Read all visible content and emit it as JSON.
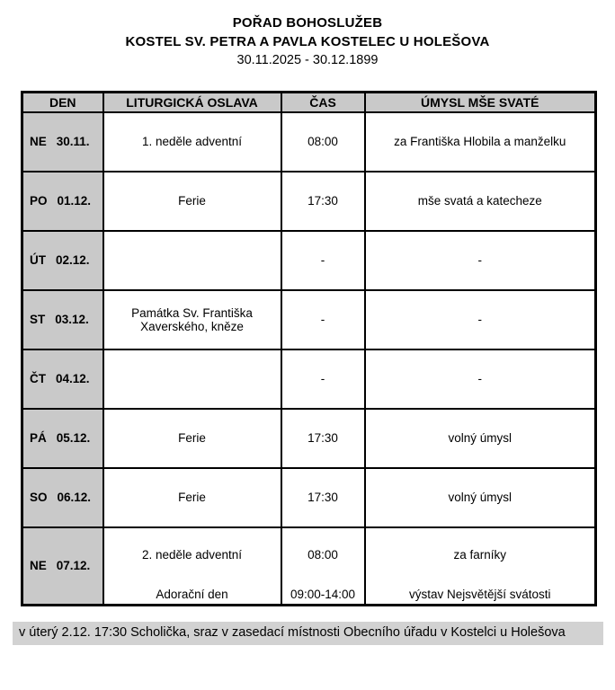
{
  "title": {
    "line1": "POŘAD BOHOSLUŽEB",
    "line2": "KOSTEL SV. PETRA A PAVLA KOSTELEC U HOLEŠOVA",
    "line3": "30.11.2025 - 30.12.1899"
  },
  "table": {
    "headers": [
      "DEN",
      "LITURGICKÁ OSLAVA",
      "ČAS",
      "ÚMYSL MŠE SVATÉ"
    ],
    "rows": [
      {
        "day": "NE",
        "date": "30.11.",
        "celebration": "1. neděle adventní",
        "time": "08:00",
        "intention": "za Františka Hlobila a manželku"
      },
      {
        "day": "PO",
        "date": "01.12.",
        "celebration": "Ferie",
        "time": "17:30",
        "intention": "mše svatá a katecheze"
      },
      {
        "day": "ÚT",
        "date": "02.12.",
        "celebration": "",
        "time": "-",
        "intention": "-"
      },
      {
        "day": "ST",
        "date": "03.12.",
        "celebration": "Památka Sv. Františka Xaverského, kněze",
        "time": "-",
        "intention": "-"
      },
      {
        "day": "ČT",
        "date": "04.12.",
        "celebration": "",
        "time": "-",
        "intention": "-"
      },
      {
        "day": "PÁ",
        "date": "05.12.",
        "celebration": "Ferie",
        "time": "17:30",
        "intention": "volný úmysl"
      },
      {
        "day": "SO",
        "date": "06.12.",
        "celebration": "Ferie",
        "time": "17:30",
        "intention": "volný úmysl"
      },
      {
        "day": "NE",
        "date": "07.12.",
        "celebration": "2. neděle adventní",
        "time": "08:00",
        "intention": "za farníky",
        "celebration2": "Adorační den",
        "time2": "09:00-14:00",
        "intention2": "výstav Nejsvětější svátosti"
      }
    ]
  },
  "footer": {
    "note": "v úterý 2.12. 17:30 Scholička, sraz v zasedací místnosti Obecního úřadu v Kostelci u Holešova"
  },
  "colors": {
    "header_bg": "#c9c9c9",
    "day_column_bg": "#c9c9c9",
    "footer_bg": "#d2d2d2",
    "border": "#000000",
    "text": "#000000"
  }
}
